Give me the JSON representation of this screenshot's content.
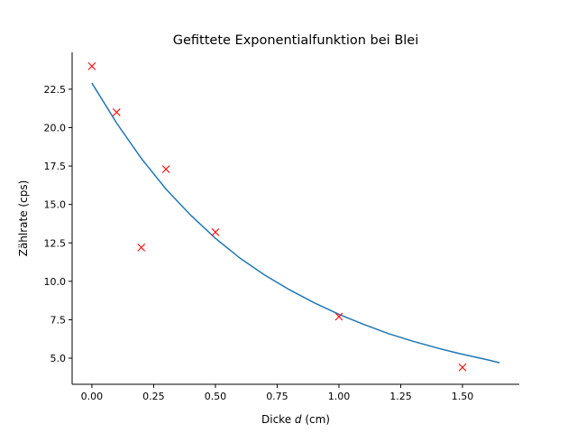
{
  "chart_data": {
    "type": "scatter",
    "title": "Gefittete Exponentialfunktion bei Blei",
    "xlabel_prefix": "Dicke ",
    "xlabel_var": "d",
    "xlabel_suffix": " (cm)",
    "ylabel": "Zählrate (cps)",
    "xlim": [
      -0.08,
      1.73
    ],
    "ylim": [
      3.3,
      24.9
    ],
    "x_ticks": [
      0.0,
      0.25,
      0.5,
      0.75,
      1.0,
      1.25,
      1.5
    ],
    "x_tick_labels": [
      "0.00",
      "0.25",
      "0.50",
      "0.75",
      "1.00",
      "1.25",
      "1.50"
    ],
    "y_ticks": [
      5.0,
      7.5,
      10.0,
      12.5,
      15.0,
      17.5,
      20.0,
      22.5
    ],
    "y_tick_labels": [
      "5.0",
      "7.5",
      "10.0",
      "12.5",
      "15.0",
      "17.5",
      "20.0",
      "22.5"
    ],
    "grid": false,
    "series": [
      {
        "kind": "scatter",
        "marker": "x",
        "color": "#ff0000",
        "x": [
          0.0,
          0.1,
          0.2,
          0.3,
          0.5,
          1.0,
          1.5
        ],
        "y": [
          24.0,
          21.0,
          12.2,
          17.3,
          13.2,
          7.7,
          4.4
        ]
      },
      {
        "kind": "line",
        "color": "#1f77b4",
        "x": [
          0.0,
          0.1,
          0.2,
          0.3,
          0.4,
          0.5,
          0.6,
          0.7,
          0.8,
          0.9,
          1.0,
          1.1,
          1.2,
          1.3,
          1.4,
          1.5,
          1.6,
          1.65
        ],
        "y": [
          22.9,
          20.3,
          18.0,
          16.0,
          14.3,
          12.8,
          11.5,
          10.4,
          9.45,
          8.6,
          7.85,
          7.2,
          6.6,
          6.1,
          5.65,
          5.25,
          4.9,
          4.7
        ]
      }
    ]
  }
}
